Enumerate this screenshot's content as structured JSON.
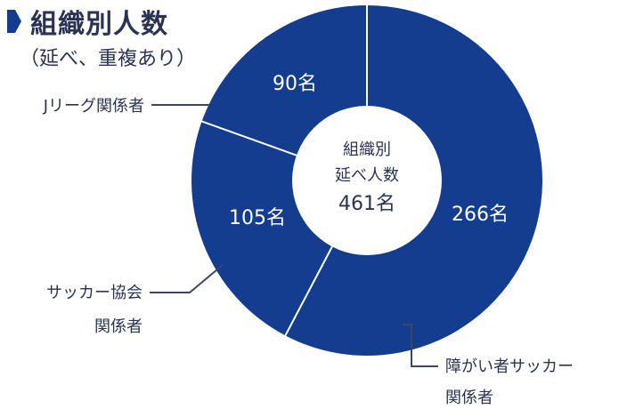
{
  "header": {
    "title": "組織別人数",
    "subtitle": "（延べ、重複あり）"
  },
  "colors": {
    "slice": "#143d8f",
    "divider": "#ffffff",
    "text_dark": "#2a3352",
    "leader": "#3a4766"
  },
  "center_label": {
    "line1": "組織別",
    "line2": "延べ人数",
    "line3": "461名"
  },
  "chart_data": {
    "type": "pie",
    "variant": "donut",
    "title": "組織別人数",
    "subtitle": "（延べ、重複あり）",
    "total_label": "461名",
    "categories": [
      "障がい者サッカー関係者",
      "サッカー協会関係者",
      "Jリーグ関係者"
    ],
    "values": [
      266,
      105,
      90
    ],
    "value_labels": [
      "266名",
      "105名",
      "90名"
    ],
    "unit": "名"
  },
  "labels": {
    "jleague": "Jリーグ関係者",
    "association_line1": "サッカー協会",
    "association_line2": "関係者",
    "disabled_line1": "障がい者サッカー",
    "disabled_line2": "関係者"
  }
}
